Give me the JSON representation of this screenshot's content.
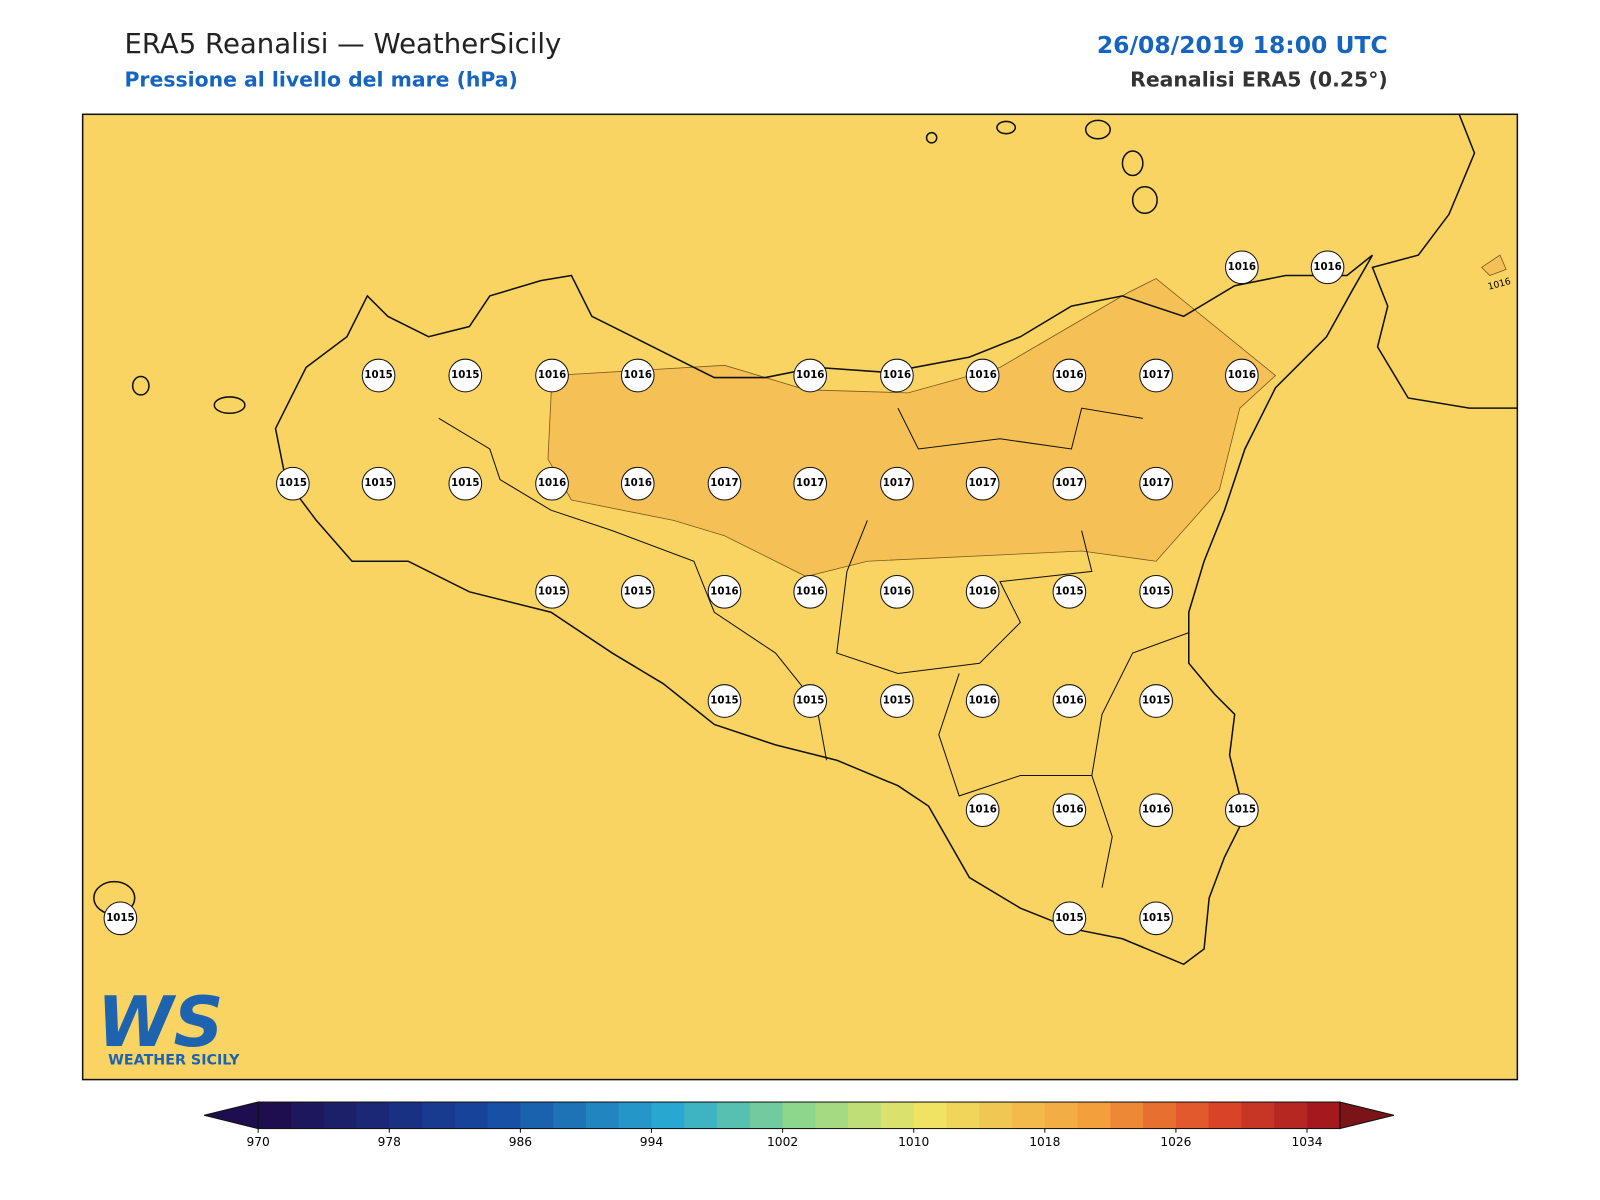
{
  "header": {
    "title": "ERA5 Reanalisi — WeatherSicily",
    "subtitle": "Pressione al livello del mare (hPa)",
    "date": "26/08/2019 18:00 UTC",
    "source": "Reanalisi ERA5 (0.25°)"
  },
  "stations": [
    1016,
    1016,
    1015,
    1015,
    1016,
    1016,
    1016,
    1016,
    1016,
    1016,
    1017,
    1016,
    1015,
    1015,
    1015,
    1016,
    1016,
    1017,
    1017,
    1017,
    1017,
    1017,
    1017,
    1015,
    1015,
    1016,
    1016,
    1016,
    1016,
    1015,
    1015,
    1015,
    1015,
    1015,
    1016,
    1016,
    1015,
    1016,
    1016,
    1016,
    1015,
    1015,
    1015,
    1015
  ],
  "contour_labels": [
    "1016"
  ],
  "logo": {
    "mark": "WS",
    "text": "WEATHER SICILY"
  },
  "colorbar": {
    "ticks": [
      970,
      978,
      986,
      994,
      1002,
      1010,
      1018,
      1026,
      1034
    ],
    "min": 970,
    "max": 1036,
    "step": 2
  }
}
